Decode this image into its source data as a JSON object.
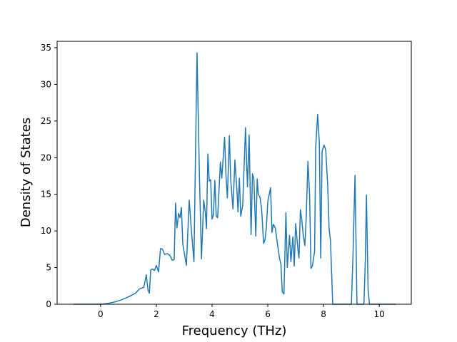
{
  "chart_data": {
    "type": "line",
    "xlabel": "Frequency (THz)",
    "ylabel": "Density of States",
    "x": [
      -0.97,
      0,
      0.25,
      0.5,
      0.75,
      1.0,
      1.25,
      1.4,
      1.55,
      1.64,
      1.7,
      1.75,
      1.8,
      1.87,
      1.93,
      2.0,
      2.08,
      2.15,
      2.22,
      2.3,
      2.4,
      2.5,
      2.57,
      2.64,
      2.69,
      2.74,
      2.8,
      2.85,
      2.9,
      2.95,
      3.08,
      3.18,
      3.26,
      3.35,
      3.46,
      3.55,
      3.62,
      3.7,
      3.76,
      3.8,
      3.85,
      3.9,
      3.95,
      4.0,
      4.05,
      4.1,
      4.15,
      4.2,
      4.3,
      4.35,
      4.45,
      4.5,
      4.55,
      4.62,
      4.67,
      4.75,
      4.82,
      4.9,
      4.93,
      4.98,
      5.03,
      5.1,
      5.2,
      5.27,
      5.33,
      5.4,
      5.45,
      5.5,
      5.57,
      5.62,
      5.66,
      5.72,
      5.78,
      5.85,
      5.9,
      5.95,
      6.0,
      6.1,
      6.15,
      6.2,
      6.27,
      6.35,
      6.42,
      6.47,
      6.52,
      6.58,
      6.65,
      6.7,
      6.78,
      6.83,
      6.9,
      6.95,
      7.0,
      7.08,
      7.12,
      7.17,
      7.22,
      7.27,
      7.33,
      7.38,
      7.44,
      7.5,
      7.55,
      7.6,
      7.68,
      7.72,
      7.79,
      7.85,
      7.9,
      7.95,
      8.02,
      8.08,
      8.15,
      8.2,
      8.25,
      8.33,
      9.0,
      9.06,
      9.13,
      9.2,
      9.45,
      9.5,
      9.54,
      9.6,
      9.65,
      10.6
    ],
    "series": [
      {
        "color": "#1f77b4",
        "values": [
          0,
          0,
          0.1,
          0.3,
          0.6,
          1.0,
          1.5,
          2.1,
          2.3,
          4.0,
          2.0,
          1.5,
          4.7,
          4.8,
          4.6,
          5.3,
          4.4,
          7.6,
          7.5,
          6.8,
          6.9,
          6.6,
          6.0,
          6.1,
          13.8,
          10.4,
          12.4,
          11.8,
          13.2,
          8.2,
          5.3,
          14.2,
          10.0,
          5.8,
          34.3,
          17.0,
          6.2,
          14.2,
          12.5,
          10.3,
          20.5,
          16.8,
          17.0,
          11.6,
          12.2,
          16.9,
          12.0,
          11.8,
          19.4,
          17.2,
          22.8,
          17.5,
          14.5,
          23.0,
          17.0,
          13.0,
          19.7,
          15.0,
          12.6,
          17.2,
          12.0,
          13.5,
          24.1,
          16.0,
          23.1,
          9.5,
          17.8,
          17.1,
          9.3,
          17.1,
          15.0,
          14.6,
          12.9,
          8.3,
          8.8,
          10.5,
          14.0,
          15.9,
          9.8,
          10.9,
          10.4,
          8.1,
          6.3,
          5.5,
          1.7,
          1.4,
          12.5,
          5.0,
          9.4,
          5.8,
          9.2,
          5.2,
          11.0,
          7.5,
          6.3,
          12.9,
          11.5,
          9.5,
          8.0,
          12.0,
          19.5,
          15.0,
          4.9,
          5.2,
          7.2,
          21.5,
          25.9,
          22.0,
          6.3,
          20.9,
          21.7,
          21.0,
          16.2,
          10.3,
          8.7,
          0,
          0,
          7.0,
          17.6,
          0,
          0,
          6.0,
          14.9,
          2.0,
          0,
          0
        ]
      }
    ],
    "xlim": [
      -1.56,
      11.15
    ],
    "ylim": [
      0,
      35.87
    ],
    "xticks": [
      0,
      2,
      4,
      6,
      8,
      10
    ],
    "yticks": [
      0,
      5,
      10,
      15,
      20,
      25,
      30,
      35
    ]
  }
}
